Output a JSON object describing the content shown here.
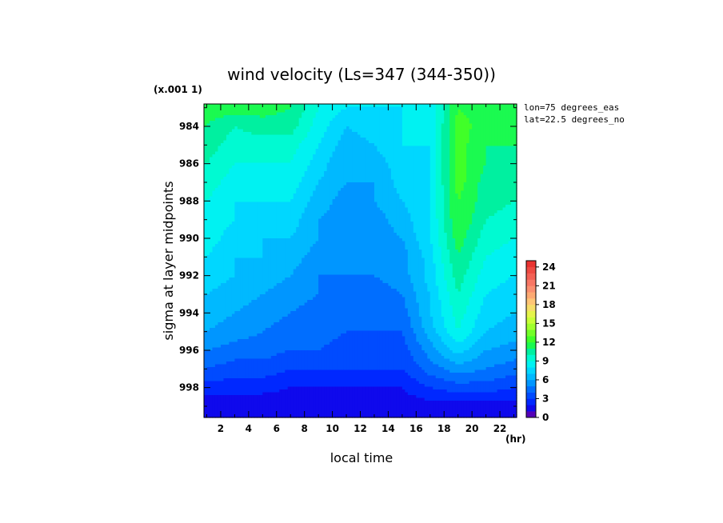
{
  "chart_data": {
    "type": "heatmap",
    "title": "wind velocity (Ls=347 (344-350))",
    "xlabel": "local time",
    "x_unit": "(hr)",
    "ylabel": "sigma at layer midpoints",
    "y_multiplier": "(x.001 1)",
    "annotations": [
      "lon=75 degrees_eas",
      "lat=22.5 degrees_no"
    ],
    "x": [
      1,
      3,
      5,
      7,
      9,
      11,
      13,
      15,
      17,
      19,
      21,
      23
    ],
    "xlim": [
      0.8,
      23.2
    ],
    "x_ticks": [
      "2",
      "4",
      "6",
      "8",
      "10",
      "12",
      "14",
      "16",
      "18",
      "20",
      "22"
    ],
    "y": [
      983,
      984,
      985,
      986,
      987,
      988,
      989,
      990,
      991,
      992,
      993,
      994,
      995,
      996,
      997,
      998,
      999
    ],
    "ylim": [
      982.8,
      999.6
    ],
    "y_ticks": [
      "984",
      "986",
      "988",
      "990",
      "992",
      "994",
      "996",
      "998"
    ],
    "values": [
      [
        11.5,
        11.5,
        11.5,
        11,
        9,
        8,
        8,
        8,
        8,
        12,
        11.5,
        11.5
      ],
      [
        11,
        10,
        10.5,
        10.5,
        8.5,
        7,
        7.5,
        8,
        8,
        12.5,
        11.5,
        11
      ],
      [
        10.5,
        9.5,
        9.5,
        9.5,
        8,
        6.5,
        7,
        8,
        8,
        12.5,
        11,
        11
      ],
      [
        10,
        9,
        9,
        9,
        7.5,
        6,
        6.5,
        7.5,
        8,
        12.5,
        11,
        10.5
      ],
      [
        9.5,
        8.5,
        8.5,
        8.5,
        7,
        6,
        6,
        7.5,
        8,
        12.5,
        10.5,
        10
      ],
      [
        9,
        8,
        8,
        8,
        6.5,
        5.5,
        6,
        7,
        8,
        12,
        10.5,
        10
      ],
      [
        8.5,
        8,
        7.5,
        7.5,
        6,
        5.5,
        5.5,
        6.5,
        8,
        12,
        10,
        9.5
      ],
      [
        8.5,
        7.5,
        7,
        7,
        6,
        5.5,
        5.5,
        6,
        8,
        11.5,
        9.5,
        9
      ],
      [
        8,
        7,
        7,
        6.5,
        5.5,
        5,
        5,
        5.5,
        7.5,
        11,
        9,
        8.5
      ],
      [
        7.5,
        7,
        6.5,
        6,
        5,
        5,
        5,
        5.5,
        7.5,
        10.5,
        8.5,
        8
      ],
      [
        7,
        6.5,
        6,
        5.5,
        5,
        4.5,
        4.5,
        5,
        7,
        10,
        8,
        7.5
      ],
      [
        6.5,
        6,
        5.5,
        5,
        4.5,
        4.5,
        4.5,
        4.5,
        7,
        9.5,
        7.5,
        7
      ],
      [
        6,
        5.5,
        5,
        4.5,
        4.5,
        4,
        4,
        4,
        6.5,
        9,
        7,
        6.5
      ],
      [
        5,
        4.5,
        4.5,
        4,
        4,
        3.5,
        3.5,
        3.5,
        5.5,
        7.5,
        6,
        5.5
      ],
      [
        4,
        3.5,
        3.5,
        3,
        3,
        3,
        3,
        3,
        4.5,
        5.5,
        5,
        4.5
      ],
      [
        2.5,
        2.5,
        2.5,
        2,
        2,
        2,
        2,
        2,
        3,
        3.5,
        3.5,
        3
      ],
      [
        1,
        1,
        1,
        1,
        1,
        1,
        1,
        1.5,
        1.5,
        1.5,
        1.5,
        1.5
      ]
    ],
    "colorbar": {
      "min": 0,
      "max": 25,
      "ticks": [
        "0",
        "3",
        "6",
        "9",
        "12",
        "15",
        "18",
        "21",
        "24"
      ]
    },
    "grid": false
  }
}
